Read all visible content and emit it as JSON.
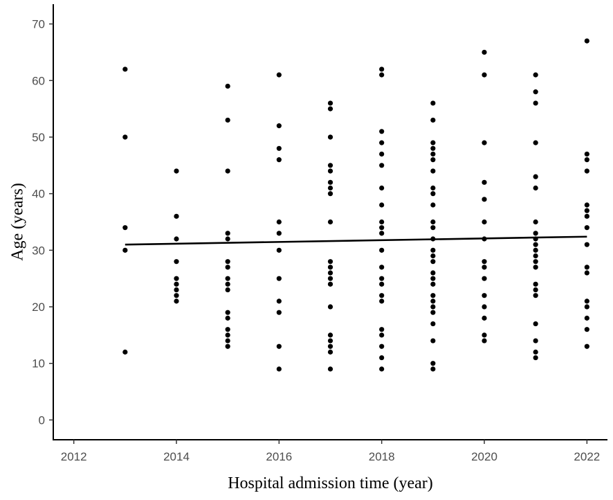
{
  "chart_data": {
    "type": "scatter",
    "xlabel": "Hospital admission time (year)",
    "ylabel": "Age (years)",
    "xlim": [
      2011.6,
      2022.4
    ],
    "ylim": [
      -3.5,
      73.5
    ],
    "xticks": [
      "2012",
      "2014",
      "2016",
      "2018",
      "2020",
      "2022"
    ],
    "yticks": [
      "0",
      "10",
      "20",
      "30",
      "40",
      "50",
      "60",
      "70"
    ],
    "grid": false,
    "legend": "none",
    "point_color": "#000000",
    "trend_line": {
      "x": [
        2013,
        2022
      ],
      "y": [
        31.0,
        32.4
      ]
    },
    "points": {
      "2013": [
        62,
        50,
        34,
        30,
        12
      ],
      "2014": [
        44,
        36,
        32,
        28,
        25,
        24,
        23,
        22,
        21
      ],
      "2015": [
        59,
        53,
        44,
        33,
        32,
        28,
        27,
        25,
        24,
        23,
        19,
        18,
        16,
        15,
        14,
        13
      ],
      "2016": [
        61,
        52,
        48,
        46,
        35,
        33,
        30,
        25,
        21,
        19,
        13,
        9
      ],
      "2017": [
        56,
        55,
        50,
        45,
        44,
        42,
        41,
        40,
        35,
        28,
        27,
        26,
        25,
        24,
        20,
        15,
        14,
        13,
        12,
        9
      ],
      "2018": [
        62,
        61,
        51,
        49,
        47,
        45,
        41,
        38,
        35,
        34,
        33,
        30,
        27,
        25,
        24,
        22,
        21,
        16,
        15,
        13,
        11,
        9
      ],
      "2019": [
        56,
        53,
        49,
        48,
        47,
        46,
        44,
        41,
        40,
        38,
        35,
        34,
        32,
        30,
        29,
        28,
        26,
        25,
        24,
        22,
        21,
        20,
        19,
        17,
        14,
        10,
        9
      ],
      "2020": [
        65,
        61,
        49,
        42,
        39,
        35,
        32,
        28,
        27,
        25,
        22,
        20,
        18,
        15,
        14
      ],
      "2021": [
        61,
        58,
        56,
        49,
        43,
        41,
        35,
        33,
        32,
        31,
        30,
        29,
        28,
        27,
        24,
        23,
        22,
        17,
        14,
        12,
        11
      ],
      "2022": [
        67,
        47,
        46,
        44,
        38,
        37,
        36,
        34,
        31,
        27,
        26,
        21,
        20,
        18,
        16,
        13
      ]
    }
  }
}
